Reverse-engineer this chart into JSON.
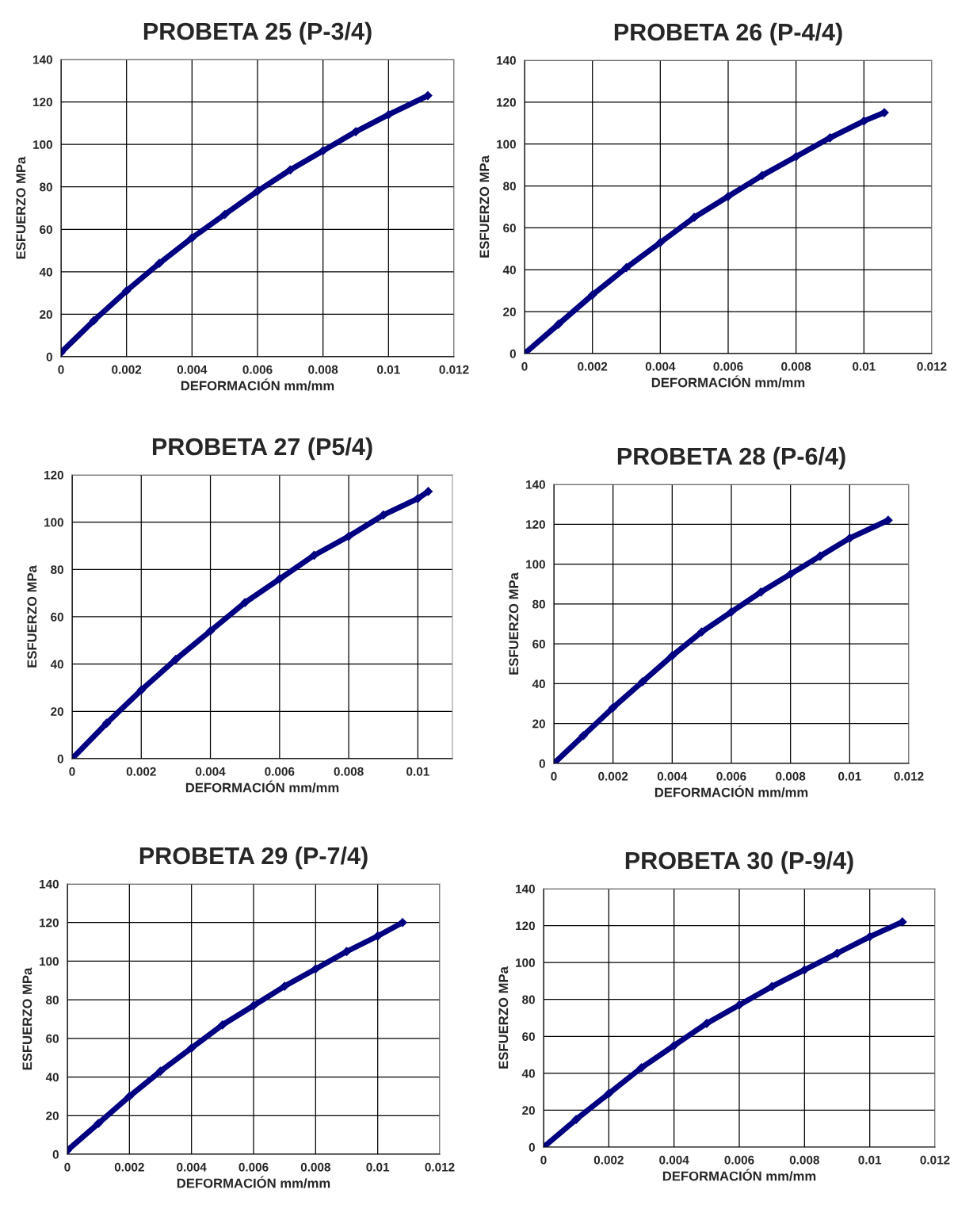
{
  "chart_data": [
    {
      "type": "line",
      "title": "PROBETA 25 (P-3/4)",
      "xlabel": "DEFORMACIÓN mm/mm",
      "ylabel": "ESFUERZO MPa",
      "xlim": [
        0,
        0.012
      ],
      "xticks": [
        0,
        0.002,
        0.004,
        0.006,
        0.008,
        0.01,
        0.012
      ],
      "ylim": [
        0,
        140
      ],
      "yticks": [
        0,
        20,
        40,
        60,
        80,
        100,
        120,
        140
      ],
      "grid": true,
      "marker": "diamond",
      "line_style": "solid",
      "series": [
        {
          "color": "#000080",
          "x": [
            0,
            0.001,
            0.002,
            0.003,
            0.004,
            0.005,
            0.006,
            0.007,
            0.008,
            0.009,
            0.01,
            0.0112
          ],
          "values": [
            2,
            17,
            31,
            44,
            56,
            67,
            78,
            88,
            97,
            106,
            114,
            123
          ]
        }
      ]
    },
    {
      "type": "line",
      "title": "PROBETA 26 (P-4/4)",
      "xlabel": "DEFORMACIÓN mm/mm",
      "ylabel": "ESFUERZO MPa",
      "xlim": [
        0,
        0.012
      ],
      "xticks": [
        0,
        0.002,
        0.004,
        0.006,
        0.008,
        0.01,
        0.012
      ],
      "ylim": [
        0,
        140
      ],
      "yticks": [
        0,
        20,
        40,
        60,
        80,
        100,
        120,
        140
      ],
      "grid": true,
      "marker": "diamond",
      "line_style": "solid",
      "series": [
        {
          "color": "#000080",
          "x": [
            0,
            0.001,
            0.002,
            0.003,
            0.004,
            0.005,
            0.006,
            0.007,
            0.008,
            0.009,
            0.01,
            0.0106
          ],
          "values": [
            0,
            14,
            28,
            41,
            53,
            65,
            75,
            85,
            94,
            103,
            111,
            115
          ]
        }
      ]
    },
    {
      "type": "line",
      "title": "PROBETA 27 (P5/4)",
      "xlabel": "DEFORMACIÓN mm/mm",
      "ylabel": "ESFUERZO MPa",
      "xlim": [
        0,
        0.011
      ],
      "xticks": [
        0,
        0.002,
        0.004,
        0.006,
        0.008,
        0.01
      ],
      "ylim": [
        0,
        120
      ],
      "yticks": [
        0,
        20,
        40,
        60,
        80,
        100,
        120
      ],
      "grid": true,
      "marker": "diamond",
      "line_style": "solid",
      "series": [
        {
          "color": "#000080",
          "x": [
            0,
            0.001,
            0.002,
            0.003,
            0.004,
            0.005,
            0.006,
            0.007,
            0.008,
            0.009,
            0.01,
            0.0103
          ],
          "values": [
            0,
            15,
            29,
            42,
            54,
            66,
            76,
            86,
            94,
            103,
            110,
            113
          ]
        }
      ]
    },
    {
      "type": "line",
      "title": "PROBETA 28 (P-6/4)",
      "xlabel": "DEFORMACIÓN mm/mm",
      "ylabel": "ESFUERZO MPa",
      "xlim": [
        0,
        0.012
      ],
      "xticks": [
        0,
        0.002,
        0.004,
        0.006,
        0.008,
        0.01,
        0.012
      ],
      "ylim": [
        0,
        140
      ],
      "yticks": [
        0,
        20,
        40,
        60,
        80,
        100,
        120,
        140
      ],
      "grid": true,
      "marker": "diamond",
      "line_style": "solid",
      "series": [
        {
          "color": "#000080",
          "x": [
            0,
            0.001,
            0.002,
            0.003,
            0.004,
            0.005,
            0.006,
            0.007,
            0.008,
            0.009,
            0.01,
            0.0113
          ],
          "values": [
            0,
            14,
            28,
            41,
            54,
            66,
            76,
            86,
            95,
            104,
            113,
            122
          ]
        }
      ]
    },
    {
      "type": "line",
      "title": "PROBETA 29 (P-7/4)",
      "xlabel": "DEFORMACIÓN mm/mm",
      "ylabel": "ESFUERZO MPa",
      "xlim": [
        0,
        0.012
      ],
      "xticks": [
        0,
        0.002,
        0.004,
        0.006,
        0.008,
        0.01,
        0.012
      ],
      "ylim": [
        0,
        140
      ],
      "yticks": [
        0,
        20,
        40,
        60,
        80,
        100,
        120,
        140
      ],
      "grid": true,
      "marker": "diamond",
      "line_style": "solid",
      "series": [
        {
          "color": "#000080",
          "x": [
            0,
            0.001,
            0.002,
            0.003,
            0.004,
            0.005,
            0.006,
            0.007,
            0.008,
            0.009,
            0.01,
            0.0108
          ],
          "values": [
            2,
            16,
            30,
            43,
            55,
            67,
            77,
            87,
            96,
            105,
            113,
            120
          ]
        }
      ]
    },
    {
      "type": "line",
      "title": "PROBETA 30 (P-9/4)",
      "xlabel": "DEFORMACIÓN mm/mm",
      "ylabel": "ESFUERZO MPa",
      "xlim": [
        0,
        0.012
      ],
      "xticks": [
        0,
        0.002,
        0.004,
        0.006,
        0.008,
        0.01,
        0.012
      ],
      "ylim": [
        0,
        140
      ],
      "yticks": [
        0,
        20,
        40,
        60,
        80,
        100,
        120,
        140
      ],
      "grid": true,
      "marker": "diamond",
      "line_style": "solid",
      "series": [
        {
          "color": "#000080",
          "x": [
            0,
            0.001,
            0.002,
            0.003,
            0.004,
            0.005,
            0.006,
            0.007,
            0.008,
            0.009,
            0.01,
            0.011
          ],
          "values": [
            0,
            15,
            29,
            43,
            55,
            67,
            77,
            87,
            96,
            105,
            114,
            122
          ]
        }
      ]
    }
  ]
}
